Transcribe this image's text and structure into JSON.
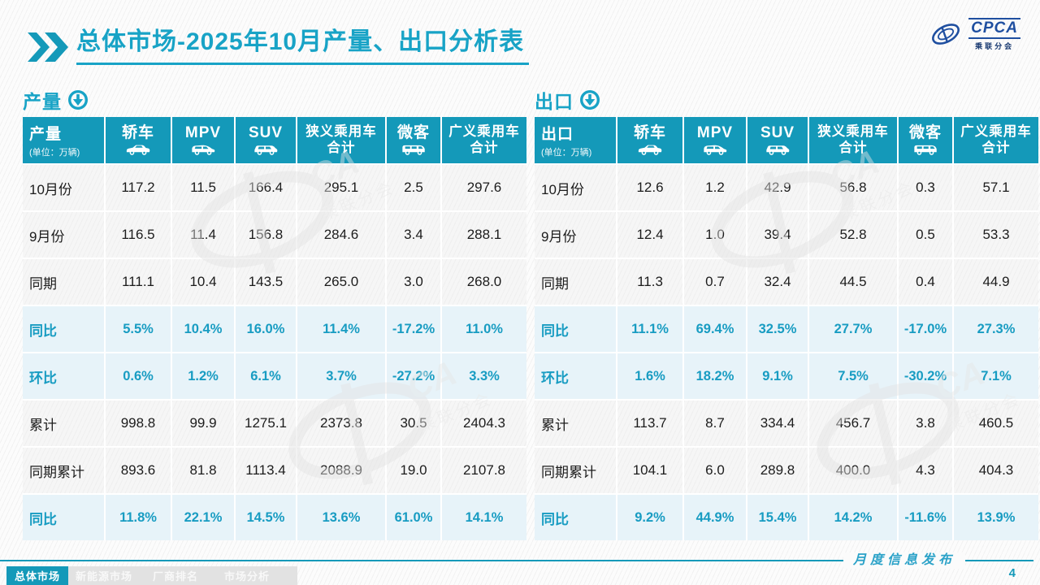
{
  "colors": {
    "accent_teal": "#1499B9",
    "title_teal": "#18A3C6",
    "percent_text": "#189CC2",
    "percent_row_bg": "#E7F3F9",
    "data_row_bg": "#F6F6F6",
    "logo_blue": "#1F4FA0",
    "tab_inactive_bg": "#E2E2E2"
  },
  "title": {
    "text": "总体市场-2025年10月产量、出口分析表"
  },
  "logo": {
    "name_text": "CPCA",
    "cn_text": "乘联分会"
  },
  "chart_data": [
    {
      "type": "table",
      "id": "production",
      "name": "production-table",
      "title": "产量",
      "unit_label": "(单位：万辆)",
      "columns": [
        {
          "name": "sedan",
          "lines": [
            "轿车"
          ],
          "icon": "sedan-car-icon"
        },
        {
          "name": "mpv",
          "lines": [
            "MPV"
          ],
          "icon": "mpv-car-icon"
        },
        {
          "name": "suv",
          "lines": [
            "SUV"
          ],
          "icon": "suv-car-icon"
        },
        {
          "name": "narrow-pc-total",
          "lines": [
            "狭义乘用车",
            "合计"
          ],
          "icon": null
        },
        {
          "name": "microvan",
          "lines": [
            "微客"
          ],
          "icon": "microvan-icon"
        },
        {
          "name": "broad-pc-total",
          "lines": [
            "广义乘用车",
            "合计"
          ],
          "icon": null
        }
      ],
      "rows": [
        {
          "label": "10月份",
          "kind": "value",
          "values": [
            "117.2",
            "11.5",
            "166.4",
            "295.1",
            "2.5",
            "297.6"
          ]
        },
        {
          "label": "9月份",
          "kind": "value",
          "values": [
            "116.5",
            "11.4",
            "156.8",
            "284.6",
            "3.4",
            "288.1"
          ]
        },
        {
          "label": "同期",
          "kind": "value",
          "values": [
            "111.1",
            "10.4",
            "143.5",
            "265.0",
            "3.0",
            "268.0"
          ]
        },
        {
          "label": "同比",
          "kind": "percent",
          "values": [
            "5.5%",
            "10.4%",
            "16.0%",
            "11.4%",
            "-17.2%",
            "11.0%"
          ]
        },
        {
          "label": "环比",
          "kind": "percent",
          "values": [
            "0.6%",
            "1.2%",
            "6.1%",
            "3.7%",
            "-27.2%",
            "3.3%"
          ]
        },
        {
          "label": "累计",
          "kind": "value",
          "values": [
            "998.8",
            "99.9",
            "1275.1",
            "2373.8",
            "30.5",
            "2404.3"
          ]
        },
        {
          "label": "同期累计",
          "kind": "value",
          "values": [
            "893.6",
            "81.8",
            "1113.4",
            "2088.9",
            "19.0",
            "2107.8"
          ]
        },
        {
          "label": "同比",
          "kind": "percent",
          "values": [
            "11.8%",
            "22.1%",
            "14.5%",
            "13.6%",
            "61.0%",
            "14.1%"
          ]
        }
      ]
    },
    {
      "type": "table",
      "id": "export",
      "name": "export-table",
      "title": "出口",
      "unit_label": "(单位：万辆)",
      "columns": [
        {
          "name": "sedan",
          "lines": [
            "轿车"
          ],
          "icon": "sedan-car-icon"
        },
        {
          "name": "mpv",
          "lines": [
            "MPV"
          ],
          "icon": "mpv-car-icon"
        },
        {
          "name": "suv",
          "lines": [
            "SUV"
          ],
          "icon": "suv-car-icon"
        },
        {
          "name": "narrow-pc-total",
          "lines": [
            "狭义乘用车",
            "合计"
          ],
          "icon": null
        },
        {
          "name": "microvan",
          "lines": [
            "微客"
          ],
          "icon": "microvan-icon"
        },
        {
          "name": "broad-pc-total",
          "lines": [
            "广义乘用车",
            "合计"
          ],
          "icon": null
        }
      ],
      "rows": [
        {
          "label": "10月份",
          "kind": "value",
          "values": [
            "12.6",
            "1.2",
            "42.9",
            "56.8",
            "0.3",
            "57.1"
          ]
        },
        {
          "label": "9月份",
          "kind": "value",
          "values": [
            "12.4",
            "1.0",
            "39.4",
            "52.8",
            "0.5",
            "53.3"
          ]
        },
        {
          "label": "同期",
          "kind": "value",
          "values": [
            "11.3",
            "0.7",
            "32.4",
            "44.5",
            "0.4",
            "44.9"
          ]
        },
        {
          "label": "同比",
          "kind": "percent",
          "values": [
            "11.1%",
            "69.4%",
            "32.5%",
            "27.7%",
            "-17.0%",
            "27.3%"
          ]
        },
        {
          "label": "环比",
          "kind": "percent",
          "values": [
            "1.6%",
            "18.2%",
            "9.1%",
            "7.5%",
            "-30.2%",
            "7.1%"
          ]
        },
        {
          "label": "累计",
          "kind": "value",
          "values": [
            "113.7",
            "8.7",
            "334.4",
            "456.7",
            "3.8",
            "460.5"
          ]
        },
        {
          "label": "同期累计",
          "kind": "value",
          "values": [
            "104.1",
            "6.0",
            "289.8",
            "400.0",
            "4.3",
            "404.3"
          ]
        },
        {
          "label": "同比",
          "kind": "percent",
          "values": [
            "9.2%",
            "44.9%",
            "15.4%",
            "14.2%",
            "-11.6%",
            "13.9%"
          ]
        }
      ]
    }
  ],
  "footer": {
    "tabs": [
      {
        "name": "tab-overall-market",
        "label": "总体市场",
        "active": true
      },
      {
        "name": "tab-nev-market",
        "label": "新能源市场",
        "active": false
      },
      {
        "name": "tab-manufacturer-ranking",
        "label": "厂商排名",
        "active": false
      },
      {
        "name": "tab-market-analysis",
        "label": "市场分析",
        "active": false
      }
    ],
    "publication_label": "月度信息发布",
    "page_number": "4"
  }
}
